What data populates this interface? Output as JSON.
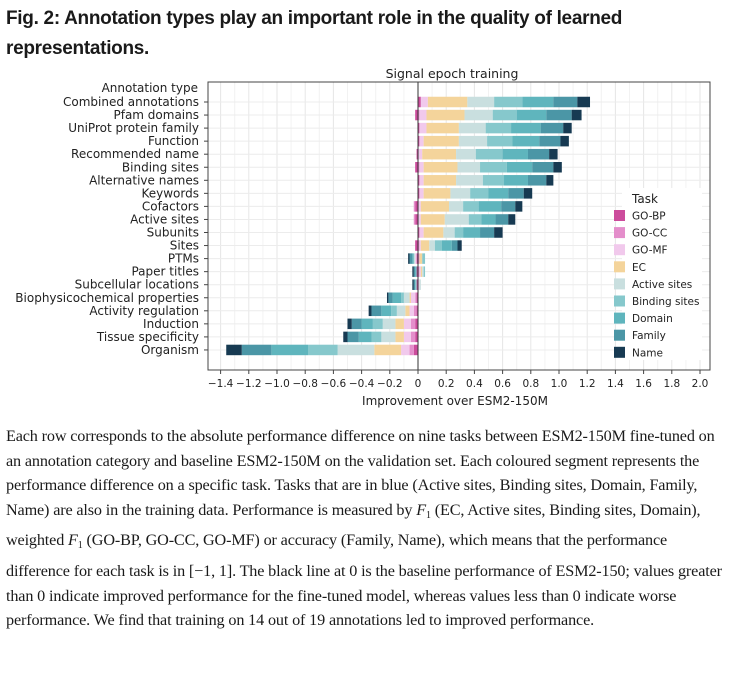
{
  "figure": {
    "title": "Fig. 2: Annotation types play an important role in the quality of learned representations."
  },
  "caption": {
    "parts": [
      "Each row corresponds to the absolute performance difference on nine tasks between ESM2-150M fine-tuned on an annotation category and baseline ESM2-150M on the validation set. Each coloured segment represents the performance difference on a specific task. Tasks that are in blue (Active sites, Binding sites, Domain, Family, Name) are also in the training data. Performance is measured by ",
      " (EC, Active sites, Binding sites, Domain), weighted ",
      " (GO-BP, GO-CC, GO-MF) or accuracy (Family, Name), which means that the performance difference for each task is in [−1, 1]. The black line at 0 is the baseline performance of ESM2-150; values greater than 0 indicate improved performance for the fine-tuned model, whereas values less than 0 indicate worse performance. We find that training on 14 out of 19 annotations led to improved performance."
    ],
    "f_symbol": "F",
    "f_subscript": "1"
  },
  "chart_data": {
    "type": "bar",
    "orientation": "horizontal",
    "stacked": true,
    "title": "Signal epoch training",
    "xlabel": "Improvement over ESM2-150M",
    "ylabel": "Annotation type",
    "xlim": [
      -1.5,
      2.05
    ],
    "xticks": [
      -1.4,
      -1.2,
      -1.0,
      -0.8,
      -0.6,
      -0.4,
      -0.2,
      0,
      0.2,
      0.4,
      0.6,
      0.8,
      1.0,
      1.2,
      1.4,
      1.6,
      1.8,
      2.0
    ],
    "xtick_labels": [
      "−1.4",
      "−1.2",
      "−1.0",
      "−0.8",
      "−0.6",
      "−0.4",
      "−0.2",
      "0",
      "0.2",
      "0.4",
      "0.6",
      "0.8",
      "1.0",
      "1.2",
      "1.4",
      "1.6",
      "1.8",
      "2.0"
    ],
    "grid": true,
    "legend": {
      "title": "Task",
      "placement": "right"
    },
    "tasks": [
      "GO-BP",
      "GO-CC",
      "GO-MF",
      "EC",
      "Active sites",
      "Binding sites",
      "Domain",
      "Family",
      "Name"
    ],
    "colors": {
      "GO-BP": "#cc4c9c",
      "GO-CC": "#e48ecb",
      "GO-MF": "#f1c9ec",
      "EC": "#f4d49b",
      "Active sites": "#c9dfdf",
      "Binding sites": "#86c8cc",
      "Domain": "#5fb5bd",
      "Family": "#4b96a6",
      "Name": "#173a52"
    },
    "categories": [
      "Combined annotations",
      "Pfam domains",
      "UniProt protein family",
      "Function",
      "Recommended name",
      "Binding sites",
      "Alternative names",
      "Keywords",
      "Cofactors",
      "Active sites",
      "Subunits",
      "Sites",
      "PTMs",
      "Paper titles",
      "Subcellular locations",
      "Biophysicochemical properties",
      "Activity regulation",
      "Induction",
      "Tissue specificity",
      "Organism"
    ],
    "series": [
      {
        "name": "GO-BP",
        "values": [
          0.02,
          -0.02,
          0.01,
          0.01,
          -0.01,
          -0.02,
          0.01,
          0.01,
          -0.02,
          -0.02,
          0.01,
          -0.02,
          -0.01,
          -0.01,
          -0.01,
          -0.01,
          -0.01,
          -0.02,
          -0.02,
          -0.03
        ]
      },
      {
        "name": "GO-CC",
        "values": [
          0.0,
          0.01,
          0.0,
          0.0,
          0.0,
          0.01,
          0.0,
          0.0,
          -0.01,
          -0.01,
          0.0,
          0.01,
          0.01,
          0.01,
          0.0,
          -0.01,
          -0.02,
          -0.03,
          -0.03,
          -0.03
        ]
      },
      {
        "name": "GO-MF",
        "values": [
          0.05,
          0.05,
          0.05,
          0.03,
          0.03,
          0.03,
          0.03,
          0.03,
          0.02,
          0.02,
          0.03,
          0.01,
          -0.01,
          0.01,
          0.01,
          -0.03,
          -0.03,
          -0.05,
          -0.05,
          -0.06
        ]
      },
      {
        "name": "EC",
        "values": [
          0.28,
          0.27,
          0.23,
          0.25,
          0.24,
          0.24,
          0.23,
          0.19,
          0.2,
          0.17,
          0.14,
          0.06,
          0.02,
          0.01,
          0.0,
          -0.01,
          -0.03,
          -0.06,
          -0.06,
          -0.19
        ]
      },
      {
        "name": "Active sites",
        "values": [
          0.19,
          0.2,
          0.19,
          0.2,
          0.14,
          0.16,
          0.19,
          0.14,
          0.1,
          0.17,
          0.08,
          0.04,
          -0.01,
          0.01,
          0.01,
          -0.04,
          -0.06,
          -0.09,
          -0.1,
          -0.26
        ]
      },
      {
        "name": "Binding sites",
        "values": [
          0.2,
          0.17,
          0.18,
          0.18,
          0.19,
          0.19,
          0.15,
          0.13,
          0.11,
          0.09,
          0.06,
          0.05,
          0.02,
          0.01,
          -0.01,
          -0.02,
          -0.04,
          -0.07,
          -0.07,
          -0.21
        ]
      },
      {
        "name": "Domain",
        "values": [
          0.22,
          0.21,
          0.21,
          0.19,
          0.18,
          0.18,
          0.17,
          0.14,
          0.16,
          0.1,
          0.12,
          0.07,
          -0.01,
          -0.01,
          0.0,
          -0.06,
          -0.07,
          -0.08,
          -0.09,
          -0.26
        ]
      },
      {
        "name": "Family",
        "values": [
          0.17,
          0.18,
          0.16,
          0.15,
          0.15,
          0.15,
          0.13,
          0.11,
          0.1,
          0.09,
          0.1,
          0.04,
          -0.02,
          -0.01,
          -0.01,
          -0.03,
          -0.07,
          -0.07,
          -0.08,
          -0.21
        ]
      },
      {
        "name": "Name",
        "values": [
          0.09,
          0.07,
          0.06,
          0.06,
          0.06,
          0.06,
          0.05,
          0.06,
          0.05,
          0.05,
          0.06,
          0.03,
          -0.01,
          -0.01,
          -0.01,
          -0.01,
          -0.02,
          -0.03,
          -0.03,
          -0.11
        ]
      }
    ]
  }
}
